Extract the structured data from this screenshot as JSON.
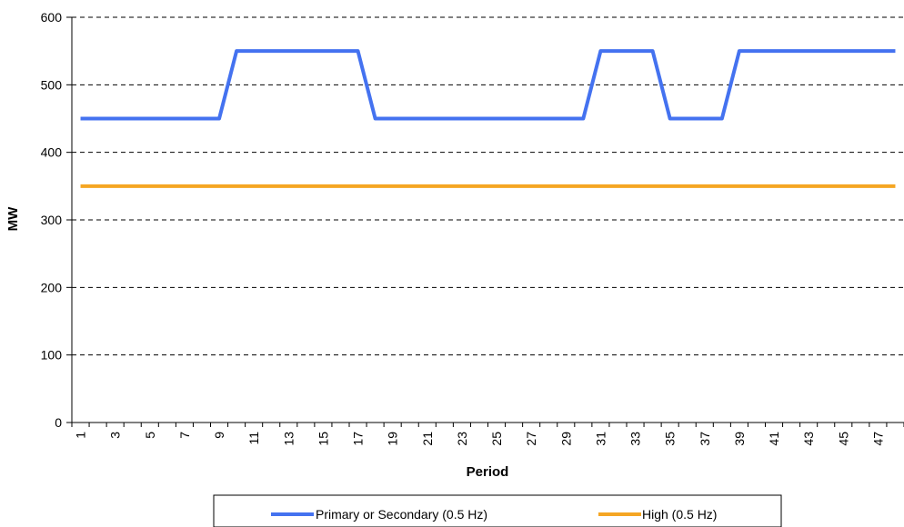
{
  "chart_data": {
    "type": "line",
    "title": "",
    "xlabel": "Period",
    "ylabel": "MW",
    "x": [
      1,
      2,
      3,
      4,
      5,
      6,
      7,
      8,
      9,
      10,
      11,
      12,
      13,
      14,
      15,
      16,
      17,
      18,
      19,
      20,
      21,
      22,
      23,
      24,
      25,
      26,
      27,
      28,
      29,
      30,
      31,
      32,
      33,
      34,
      35,
      36,
      37,
      38,
      39,
      40,
      41,
      42,
      43,
      44,
      45,
      46,
      47,
      48
    ],
    "x_tick_labels": [
      "1",
      "3",
      "5",
      "7",
      "9",
      "11",
      "13",
      "15",
      "17",
      "19",
      "21",
      "23",
      "25",
      "27",
      "29",
      "31",
      "33",
      "35",
      "37",
      "39",
      "41",
      "43",
      "45",
      "47"
    ],
    "y_tick_labels": [
      "0",
      "100",
      "200",
      "300",
      "400",
      "500",
      "600"
    ],
    "ylim": [
      0,
      600
    ],
    "grid": "horizontal dashed",
    "legend_position": "bottom",
    "series": [
      {
        "name": "Primary or Secondary (0.5 Hz)",
        "color": "#4472F0",
        "values": [
          450,
          450,
          450,
          450,
          450,
          450,
          450,
          450,
          450,
          550,
          550,
          550,
          550,
          550,
          550,
          550,
          550,
          450,
          450,
          450,
          450,
          450,
          450,
          450,
          450,
          450,
          450,
          450,
          450,
          450,
          550,
          550,
          550,
          550,
          450,
          450,
          450,
          450,
          550,
          550,
          550,
          550,
          550,
          550,
          550,
          550,
          550,
          550
        ]
      },
      {
        "name": "High (0.5 Hz)",
        "color": "#F5A623",
        "values": [
          350,
          350,
          350,
          350,
          350,
          350,
          350,
          350,
          350,
          350,
          350,
          350,
          350,
          350,
          350,
          350,
          350,
          350,
          350,
          350,
          350,
          350,
          350,
          350,
          350,
          350,
          350,
          350,
          350,
          350,
          350,
          350,
          350,
          350,
          350,
          350,
          350,
          350,
          350,
          350,
          350,
          350,
          350,
          350,
          350,
          350,
          350,
          350
        ]
      }
    ]
  }
}
